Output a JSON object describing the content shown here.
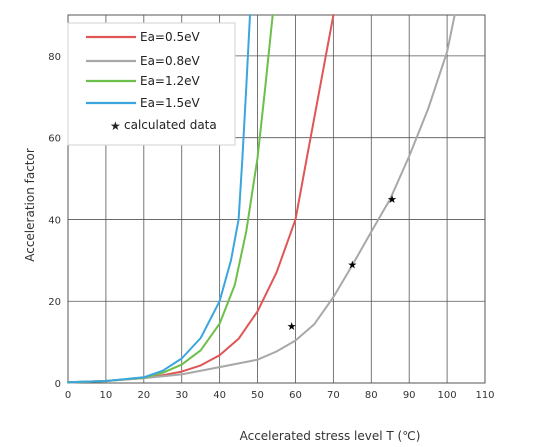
{
  "chart_data": {
    "type": "line",
    "title": "",
    "xlabel": "Accelerated stress level T (℃)",
    "ylabel": "Acceleration factor",
    "xlim": [
      0,
      110
    ],
    "ylim": [
      0,
      90
    ],
    "xticks": [
      0,
      10,
      20,
      30,
      40,
      50,
      60,
      70,
      80,
      90,
      100,
      110
    ],
    "yticks": [
      0,
      20,
      40,
      60,
      80
    ],
    "grid": true,
    "legend_position": "top-left",
    "series": [
      {
        "name": "Ea=0.5eV",
        "color": "#e05555",
        "x": [
          0,
          10,
          20,
          25,
          30,
          35,
          40,
          45,
          50,
          55,
          60,
          63,
          66,
          70
        ],
        "y": [
          0.2,
          0.5,
          1.2,
          1.9,
          2.8,
          4.3,
          6.8,
          10.8,
          17.5,
          27.0,
          40.0,
          55.0,
          70.0,
          90.0
        ]
      },
      {
        "name": "Ea=0.8eV",
        "color": "#a8a8a8",
        "x": [
          0,
          10,
          20,
          30,
          40,
          50,
          55,
          60,
          65,
          70,
          75,
          80,
          85,
          90,
          95,
          100,
          102
        ],
        "y": [
          0.1,
          0.5,
          1.2,
          2.1,
          3.9,
          5.7,
          7.7,
          10.4,
          14.4,
          21.0,
          28.8,
          37.0,
          45.0,
          55.5,
          67.0,
          81.0,
          90.0
        ]
      },
      {
        "name": "Ea=1.2eV",
        "color": "#6cbf4a",
        "x": [
          0,
          10,
          20,
          25,
          30,
          35,
          40,
          44,
          47,
          50,
          52,
          54
        ],
        "y": [
          0.2,
          0.5,
          1.3,
          2.5,
          4.5,
          8.0,
          14.5,
          24.0,
          37.0,
          55.0,
          72.0,
          90.0
        ]
      },
      {
        "name": "Ea=1.5eV",
        "color": "#3ba6dd",
        "x": [
          0,
          10,
          20,
          25,
          30,
          35,
          40,
          43,
          45,
          46,
          47,
          48
        ],
        "y": [
          0.2,
          0.5,
          1.4,
          3.0,
          6.0,
          11.0,
          20.0,
          30.0,
          40.0,
          55.0,
          72.0,
          90.0
        ]
      }
    ],
    "calculated_data": {
      "name": "calculated data",
      "marker": "star",
      "points": [
        {
          "x": 59,
          "y": 14
        },
        {
          "x": 75,
          "y": 29
        },
        {
          "x": 85.5,
          "y": 45
        }
      ]
    }
  }
}
